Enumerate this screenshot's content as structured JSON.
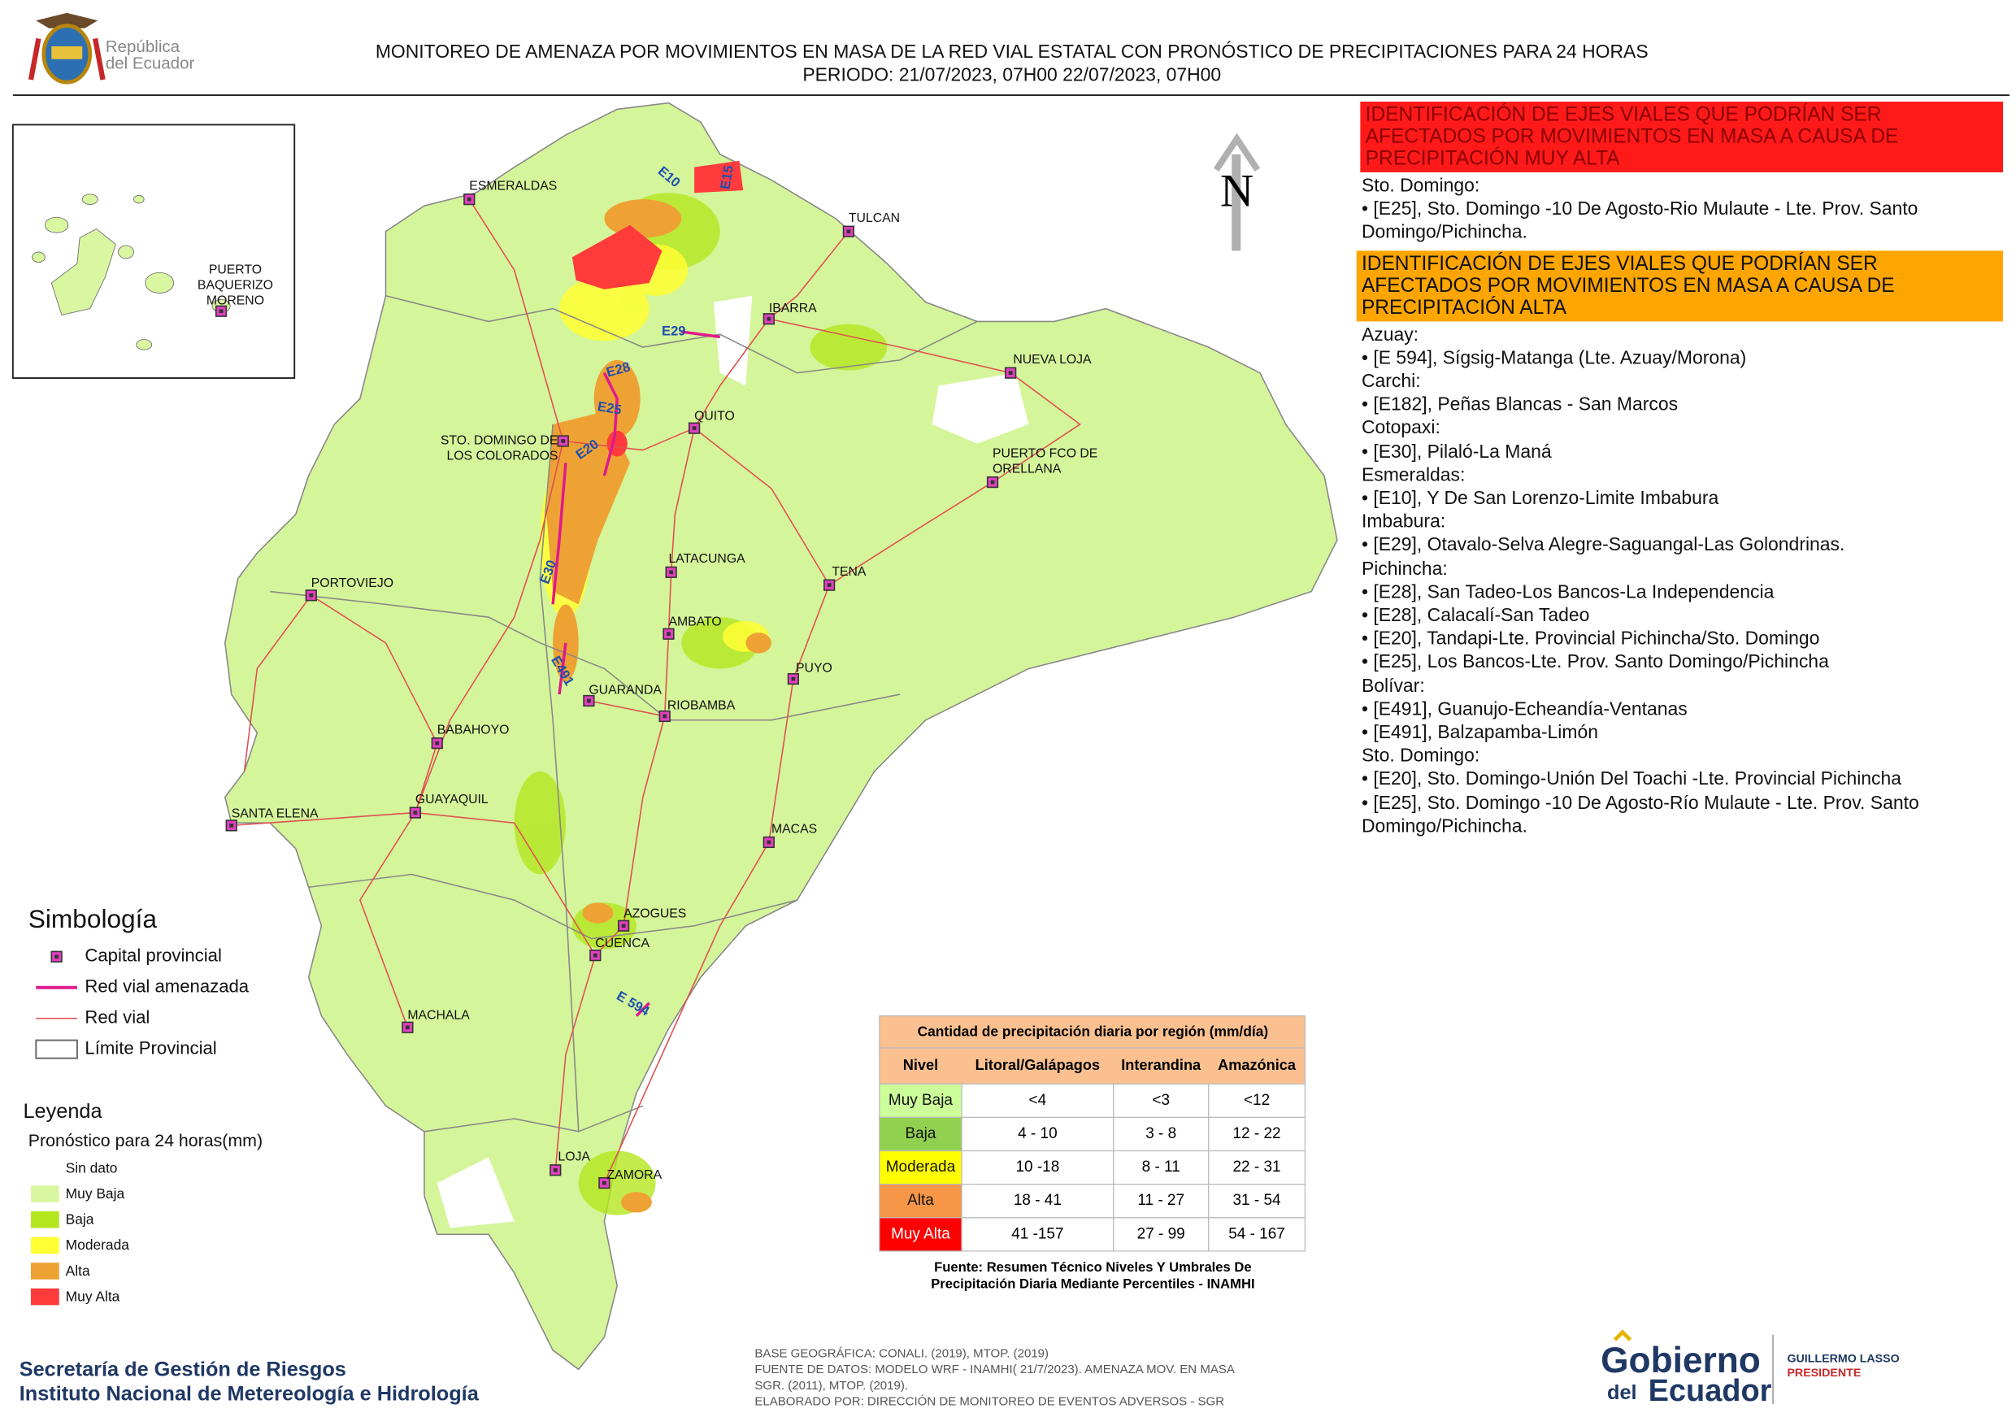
{
  "header": {
    "logo_lines": [
      "República",
      "del Ecuador"
    ],
    "title_line1": "MONITOREO DE AMENAZA POR MOVIMIENTOS EN MASA DE LA RED VIAL  ESTATAL  CON PRONÓSTICO  DE  PRECIPITACIONES PARA 24 HORAS",
    "title_line2": "PERIODO: 21/07/2023, 07H00 22/07/2023, 07H00"
  },
  "map": {
    "north": "N",
    "inset_city": {
      "lines": [
        "PUERTO",
        "BAQUERIZO",
        "MORENO"
      ]
    },
    "cities": [
      {
        "lines": [
          "ESMERALDAS"
        ]
      },
      {
        "lines": [
          "TULCAN"
        ]
      },
      {
        "lines": [
          "IBARRA"
        ]
      },
      {
        "lines": [
          "NUEVA LOJA"
        ]
      },
      {
        "lines": [
          "QUITO"
        ]
      },
      {
        "lines": [
          "STO. DOMINGO DE",
          "LOS COLORADOS"
        ]
      },
      {
        "lines": [
          "PUERTO FCO DE",
          "ORELLANA"
        ]
      },
      {
        "lines": [
          "LATACUNGA"
        ]
      },
      {
        "lines": [
          "TENA"
        ]
      },
      {
        "lines": [
          "PORTOVIEJO"
        ]
      },
      {
        "lines": [
          "AMBATO"
        ]
      },
      {
        "lines": [
          "PUYO"
        ]
      },
      {
        "lines": [
          "GUARANDA"
        ]
      },
      {
        "lines": [
          "RIOBAMBA"
        ]
      },
      {
        "lines": [
          "BABAHOYO"
        ]
      },
      {
        "lines": [
          "GUAYAQUIL"
        ]
      },
      {
        "lines": [
          "SANTA ELENA"
        ]
      },
      {
        "lines": [
          "MACAS"
        ]
      },
      {
        "lines": [
          "AZOGUES"
        ]
      },
      {
        "lines": [
          "CUENCA"
        ]
      },
      {
        "lines": [
          "MACHALA"
        ]
      },
      {
        "lines": [
          "LOJA"
        ]
      },
      {
        "lines": [
          "ZAMORA"
        ]
      }
    ],
    "road_labels": [
      "E10",
      "E15",
      "E29",
      "E28",
      "E25",
      "E20",
      "E30",
      "E491",
      "E 594"
    ]
  },
  "panel": {
    "very_high": {
      "heading": "IDENTIFICACIÓN DE EJES VIALES QUE PODRÍAN SER AFECTADOS POR MOVIMIENTOS EN MASA A CAUSA DE PRECIPITACIÓN MUY ALTA",
      "lines": [
        "Sto. Domingo:",
        "• [E25], Sto. Domingo -10 De Agosto-Rio Mulaute - Lte. Prov. Santo Domingo/Pichincha."
      ]
    },
    "high": {
      "heading": "IDENTIFICACIÓN DE EJES VIALES QUE PODRÍAN SER AFECTADOS POR MOVIMIENTOS EN MASA A CAUSA DE PRECIPITACIÓN  ALTA",
      "lines": [
        "Azuay:",
        "• [E 594], Sígsig-Matanga (Lte. Azuay/Morona)",
        "Carchi:",
        "• [E182], Peñas Blancas - San Marcos",
        "Cotopaxi:",
        "• [E30], Pilaló-La Maná",
        "Esmeraldas:",
        "• [E10], Y De San Lorenzo-Limite Imbabura",
        "Imbabura:",
        "• [E29], Otavalo-Selva Alegre-Saguangal-Las Golondrinas.",
        "Pichincha:",
        "• [E28], San Tadeo-Los Bancos-La Independencia",
        "• [E28], Calacalí-San Tadeo",
        "• [E20], Tandapi-Lte. Provincial Pichincha/Sto. Domingo",
        "• [E25], Los Bancos-Lte. Prov. Santo Domingo/Pichincha",
        "Bolívar:",
        "• [E491], Guanujo-Echeandía-Ventanas",
        "• [E491], Balzapamba-Limón",
        "Sto. Domingo:",
        "• [E20], Sto. Domingo-Unión Del Toachi -Lte. Provincial Pichincha",
        "• [E25], Sto. Domingo -10 De Agosto-Río Mulaute - Lte. Prov. Santo Domingo/Pichincha."
      ]
    }
  },
  "symbology": {
    "title": "Simbología",
    "items": [
      "Capital provincial",
      "Red vial amenazada",
      "Red vial",
      "Límite Provincial"
    ]
  },
  "legend": {
    "title": "Leyenda",
    "subtitle": "Pronóstico para 24 horas(mm)",
    "items": [
      {
        "label": "Sin dato",
        "color": "#ffffff"
      },
      {
        "label": "Muy Baja",
        "color": "#d9f7a0"
      },
      {
        "label": "Baja",
        "color": "#b4e61e"
      },
      {
        "label": "Moderada",
        "color": "#ffff33"
      },
      {
        "label": "Alta",
        "color": "#eea234"
      },
      {
        "label": "Muy Alta",
        "color": "#ff3b3b"
      }
    ]
  },
  "table": {
    "title": "Cantidad de precipitación diaria por región (mm/día)",
    "header": [
      "Nivel",
      "Litoral/Galápagos",
      "Interandina",
      "Amazónica"
    ],
    "rows": [
      {
        "level": "Muy Baja",
        "color": "#ccff99",
        "cells": [
          "<4",
          "<3",
          "<12"
        ]
      },
      {
        "level": "Baja",
        "color": "#92d050",
        "cells": [
          "4 - 10",
          "3 - 8",
          "12 - 22"
        ]
      },
      {
        "level": "Moderada",
        "color": "#ffff00",
        "cells": [
          "10 -18",
          "8 - 11",
          "22 - 31"
        ]
      },
      {
        "level": "Alta",
        "color": "#f79646",
        "cells": [
          "18 - 41",
          "11 - 27",
          "31 - 54"
        ]
      },
      {
        "level": "Muy Alta",
        "color": "#ff0000",
        "cells": [
          "41 -157",
          "27 - 99",
          "54 - 167"
        ]
      }
    ],
    "source": [
      "Fuente: Resumen Técnico Niveles Y Umbrales De",
      "Precipitación Diaria Mediante Percentiles - INAMHI"
    ]
  },
  "footer": {
    "institutions": [
      "Secretaría de Gestión de Riesgos",
      "Instituto Nacional de Metereología e Hidrología"
    ],
    "credits": [
      "BASE GEOGRÁFICA: CONALI. (2019), MTOP. (2019)",
      "FUENTE DE DATOS: MODELO WRF - INAMHI( 21/7/2023).  AMENAZA MOV. EN MASA",
      "SGR. (2011), MTOP. (2019).",
      "ELABORADO POR: DIRECCIÓN DE MONITOREO DE EVENTOS ADVERSOS - SGR"
    ],
    "logo": [
      "Gobierno",
      "del",
      "Ecuador"
    ],
    "president": [
      "GUILLERMO LASSO",
      "PRESIDENTE"
    ]
  }
}
